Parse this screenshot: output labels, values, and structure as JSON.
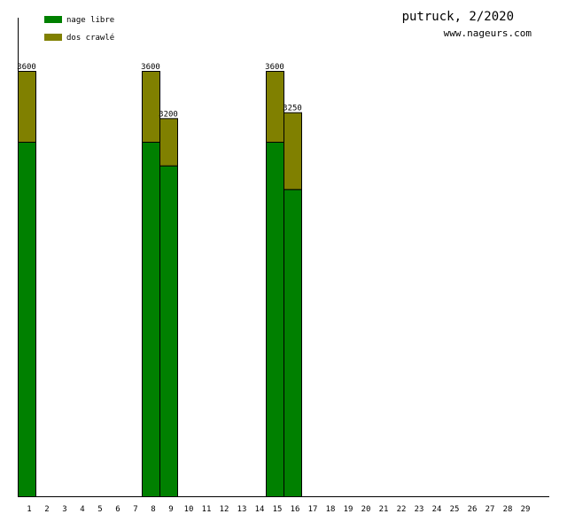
{
  "header": {
    "title": "putruck, 2/2020",
    "site": "www.nageurs.com"
  },
  "legend": {
    "items": [
      {
        "label": "nage libre",
        "color": "#008000"
      },
      {
        "label": "dos crawlé",
        "color": "#808000"
      }
    ]
  },
  "chart_data": {
    "type": "bar",
    "stacked": true,
    "categories": [
      "1",
      "2",
      "3",
      "4",
      "5",
      "6",
      "7",
      "8",
      "9",
      "10",
      "11",
      "12",
      "13",
      "14",
      "15",
      "16",
      "17",
      "18",
      "19",
      "20",
      "21",
      "22",
      "23",
      "24",
      "25",
      "26",
      "27",
      "28",
      "29"
    ],
    "series": [
      {
        "name": "nage libre",
        "color": "#008000",
        "values": [
          3000,
          0,
          0,
          0,
          0,
          0,
          0,
          3000,
          2800,
          0,
          0,
          0,
          0,
          0,
          3000,
          2600,
          0,
          0,
          0,
          0,
          0,
          0,
          0,
          0,
          0,
          0,
          0,
          0,
          0
        ]
      },
      {
        "name": "dos crawlé",
        "color": "#808000",
        "values": [
          600,
          0,
          0,
          0,
          0,
          0,
          0,
          600,
          400,
          0,
          0,
          0,
          0,
          0,
          600,
          650,
          0,
          0,
          0,
          0,
          0,
          0,
          0,
          0,
          0,
          0,
          0,
          0,
          0
        ]
      }
    ],
    "totals": [
      3600,
      0,
      0,
      0,
      0,
      0,
      0,
      3600,
      3200,
      0,
      0,
      0,
      0,
      0,
      3600,
      3250,
      0,
      0,
      0,
      0,
      0,
      0,
      0,
      0,
      0,
      0,
      0,
      0,
      0
    ],
    "total_labels": [
      "3600",
      "",
      "",
      "",
      "",
      "",
      "",
      "3600",
      "3200",
      "",
      "",
      "",
      "",
      "",
      "3600",
      "3250",
      "",
      "",
      "",
      "",
      "",
      "",
      "",
      "",
      "",
      "",
      "",
      "",
      ""
    ],
    "ylim": [
      0,
      3600
    ],
    "grid": false,
    "legend_position": "top-left"
  }
}
